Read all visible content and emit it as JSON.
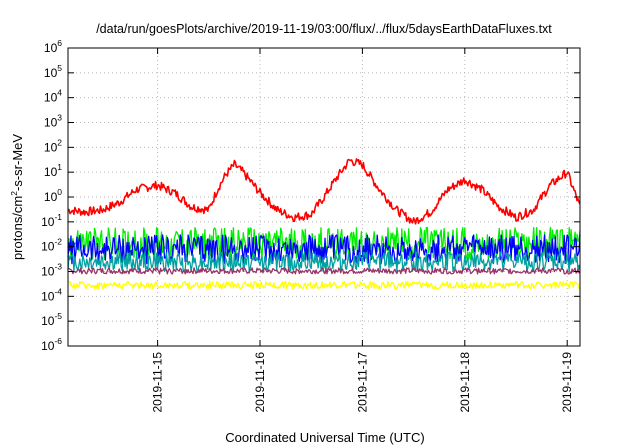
{
  "chart_data": {
    "type": "line",
    "title": "/data/run/goesPlots/archive/2019-11-19/03:00/flux/../flux/5daysEarthDataFluxes.txt",
    "xlabel": "Coordinated Universal Time (UTC)",
    "ylabel_parts": [
      "protons/cm",
      "2",
      "-s-sr-MeV"
    ],
    "y_scale": "log",
    "ylim": [
      1e-06,
      1000000.0
    ],
    "y_ticks": [
      {
        "base": "10",
        "exp": "-6",
        "value": 1e-06
      },
      {
        "base": "10",
        "exp": "-5",
        "value": 1e-05
      },
      {
        "base": "10",
        "exp": "-4",
        "value": 0.0001
      },
      {
        "base": "10",
        "exp": "-3",
        "value": 0.001
      },
      {
        "base": "10",
        "exp": "-2",
        "value": 0.01
      },
      {
        "base": "10",
        "exp": "-1",
        "value": 0.1
      },
      {
        "base": "10",
        "exp": "0",
        "value": 1
      },
      {
        "base": "10",
        "exp": "1",
        "value": 10
      },
      {
        "base": "10",
        "exp": "2",
        "value": 100
      },
      {
        "base": "10",
        "exp": "3",
        "value": 1000
      },
      {
        "base": "10",
        "exp": "4",
        "value": 10000
      },
      {
        "base": "10",
        "exp": "5",
        "value": 100000
      },
      {
        "base": "10",
        "exp": "6",
        "value": 1000000
      }
    ],
    "x_start": "2019-11-14T03:00",
    "x_end": "2019-11-19T03:00",
    "x_ticks": [
      {
        "label": "2019-11-15",
        "value": "2019-11-15T00:00"
      },
      {
        "label": "2019-11-16",
        "value": "2019-11-16T00:00"
      },
      {
        "label": "2019-11-17",
        "value": "2019-11-17T00:00"
      },
      {
        "label": "2019-11-18",
        "value": "2019-11-18T00:00"
      },
      {
        "label": "2019-11-19",
        "value": "2019-11-19T00:00"
      }
    ],
    "grid": true,
    "legend": "none",
    "series": [
      {
        "color": "#ff0000",
        "x": [
          "2019-11-14T03:00",
          "2019-11-14T07:00",
          "2019-11-14T11:00",
          "2019-11-14T15:00",
          "2019-11-14T19:00",
          "2019-11-15T00:00",
          "2019-11-15T04:00",
          "2019-11-15T08:00",
          "2019-11-15T12:00",
          "2019-11-15T14:00",
          "2019-11-15T16:00",
          "2019-11-15T18:00",
          "2019-11-15T20:00",
          "2019-11-16T00:00",
          "2019-11-16T04:00",
          "2019-11-16T08:00",
          "2019-11-16T12:00",
          "2019-11-16T15:00",
          "2019-11-16T18:00",
          "2019-11-16T21:00",
          "2019-11-17T00:00",
          "2019-11-17T04:00",
          "2019-11-17T08:00",
          "2019-11-17T12:00",
          "2019-11-17T16:00",
          "2019-11-17T20:00",
          "2019-11-18T00:00",
          "2019-11-18T04:00",
          "2019-11-18T08:00",
          "2019-11-18T12:00",
          "2019-11-18T16:00",
          "2019-11-18T20:00",
          "2019-11-19T00:00",
          "2019-11-19T03:00"
        ],
        "values": [
          0.3,
          0.25,
          0.3,
          0.6,
          2,
          3,
          1.5,
          0.4,
          0.3,
          2,
          8,
          20,
          10,
          1.5,
          0.3,
          0.15,
          0.2,
          1,
          6,
          30,
          20,
          2,
          0.3,
          0.1,
          0.25,
          2,
          5,
          2,
          0.4,
          0.15,
          0.3,
          3,
          10,
          0.4
        ]
      },
      {
        "color": "#00ee00",
        "x": [
          "2019-11-14T03:00",
          "2019-11-19T03:00"
        ],
        "values": [
          0.015,
          0.015
        ],
        "spread": [
          0.003,
          0.06
        ]
      },
      {
        "color": "#0000ff",
        "x": [
          "2019-11-14T03:00",
          "2019-11-19T03:00"
        ],
        "values": [
          0.008,
          0.008
        ],
        "spread": [
          0.002,
          0.03
        ]
      },
      {
        "color": "#00a0a0",
        "x": [
          "2019-11-14T03:00",
          "2019-11-19T03:00"
        ],
        "values": [
          0.003,
          0.003
        ],
        "spread": [
          0.001,
          0.006
        ]
      },
      {
        "color": "#993366",
        "x": [
          "2019-11-14T03:00",
          "2019-11-19T03:00"
        ],
        "values": [
          0.001,
          0.001
        ],
        "spread": [
          0.0008,
          0.0014
        ]
      },
      {
        "color": "#ffff00",
        "x": [
          "2019-11-14T03:00",
          "2019-11-19T03:00"
        ],
        "values": [
          0.0003,
          0.0003
        ],
        "spread": [
          0.0002,
          0.0004
        ]
      }
    ]
  }
}
